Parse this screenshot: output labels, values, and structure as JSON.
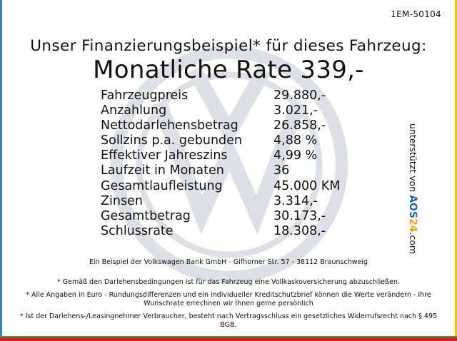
{
  "reference": "1EM-50104",
  "headline": "Unser Finanzierungsbeispiel* für dieses Fahrzeug:",
  "monthly_rate": "Monatliche Rate 339,-",
  "finance_rows": [
    {
      "label": "Fahrzeugpreis",
      "value": "29.880,-"
    },
    {
      "label": "Anzahlung",
      "value": "3.021,-"
    },
    {
      "label": "Nettodarlehensbetrag",
      "value": "26.858,-"
    },
    {
      "label": "Sollzins p.a. gebunden",
      "value": "4,88 %"
    },
    {
      "label": "Effektiver Jahreszins",
      "value": "4,99 %"
    },
    {
      "label": "Laufzeit in Monaten",
      "value": "36"
    },
    {
      "label": "Gesamtlaufleistung",
      "value": "45.000 KM"
    },
    {
      "label": "Zinsen",
      "value": "3.314,-"
    },
    {
      "label": "Gesamtbetrag",
      "value": "30.173,-"
    },
    {
      "label": "Schlussrate",
      "value": "18.308,-"
    }
  ],
  "sponsor": {
    "prefix": "unterstützt von ",
    "brand_a": "AOS",
    "brand_b": "24",
    "suffix": ".com"
  },
  "example_line": "Ein Beispiel der Volkswagen Bank GmbH - Gifhorner Str. 57 - 38112 Braunschweig",
  "footnotes": [
    "* Gemäß den Darlehensbedingungen ist für das Fahrzeug eine Vollkaskoversicherung abzuschließen.",
    "* Alle Angaben in Euro - Rundungsdifferenzen und ein individueller Kreditschutzbrief können die Werte verändern - Ihre Wunschrate errechnen wir Ihnen gerne persönlich",
    "* Ist der Darlehens-/Leasingnehmer Verbraucher, besteht nach Vertragsschluss ein gesetzliches Widerrufsrecht nach § 495 BGB."
  ],
  "colors": {
    "left_edge": "#3a7bd5",
    "right_edge": "#f2c200",
    "bottom_edge": "#d41f1f",
    "bottom_edge_top": "#2aa44a",
    "watermark": "#dde0e6"
  },
  "watermark_icon": "vw-logo-watermark"
}
